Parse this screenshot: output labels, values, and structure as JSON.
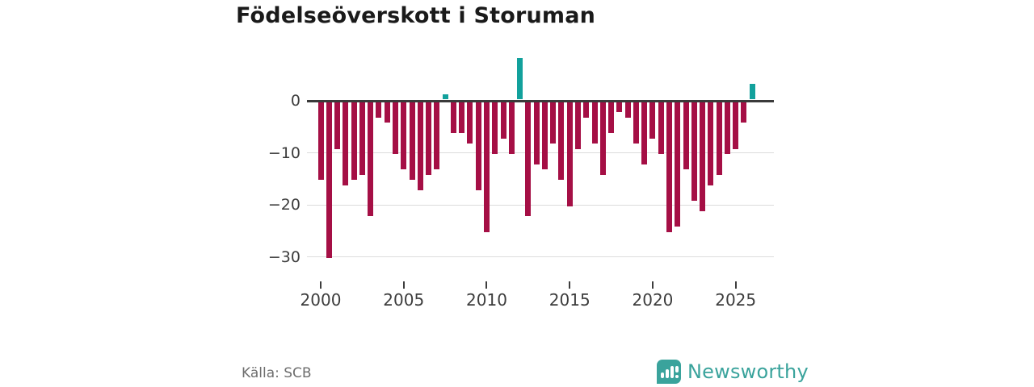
{
  "title": "Födelseöverskott i Storuman",
  "footer": {
    "source": "Källa: SCB",
    "logo_text": "Newsworthy"
  },
  "colors": {
    "negative_bar": "#a50f45",
    "positive_bar": "#12a19c",
    "zero_line": "#3a3a3a",
    "gridline": "#dcdcdc",
    "axis_text": "#3d3d3d",
    "title_text": "#1a1a1a",
    "source_text": "#6e6e6e",
    "logo_teal": "#3aa39c"
  },
  "chart_data": {
    "type": "bar",
    "title": "Födelseöverskott i Storuman",
    "x": [
      "2000H1",
      "2000H2",
      "2001H1",
      "2001H2",
      "2002H1",
      "2002H2",
      "2003H1",
      "2003H2",
      "2004H1",
      "2004H2",
      "2005H1",
      "2005H2",
      "2006H1",
      "2006H2",
      "2007H1",
      "2007H2",
      "2008H1",
      "2008H2",
      "2009H1",
      "2009H2",
      "2010H1",
      "2010H2",
      "2011H1",
      "2011H2",
      "2012H1",
      "2012H2",
      "2013H1",
      "2013H2",
      "2014H1",
      "2014H2",
      "2015H1",
      "2015H2",
      "2016H1",
      "2016H2",
      "2017H1",
      "2017H2",
      "2018H1",
      "2018H2",
      "2019H1",
      "2019H2",
      "2020H1",
      "2020H2",
      "2021H1",
      "2021H2",
      "2022H1",
      "2022H2",
      "2023H1",
      "2023H2",
      "2024H1",
      "2024H2",
      "2025H1",
      "2025H2",
      "2026H1"
    ],
    "values": [
      -15,
      -30,
      -9,
      -16,
      -15,
      -14,
      -22,
      -3,
      -4,
      -10,
      -13,
      -15,
      -17,
      -14,
      -13,
      1,
      -6,
      -6,
      -8,
      -17,
      -25,
      -10,
      -7,
      -10,
      8,
      -22,
      -12,
      -13,
      -8,
      -15,
      -20,
      -9,
      -3,
      -8,
      -14,
      -6,
      -2,
      -3,
      -8,
      -12,
      -7,
      -10,
      -25,
      -24,
      -13,
      -19,
      -21,
      -16,
      -14,
      -10,
      -9,
      -4,
      3
    ],
    "yticks": [
      0,
      -10,
      -20,
      -30
    ],
    "ytick_labels": [
      "0",
      "−10",
      "−20",
      "−30"
    ],
    "xtick_years": [
      2000,
      2005,
      2010,
      2015,
      2020,
      2025
    ],
    "ylim": [
      -32,
      10
    ],
    "grid": true,
    "legend": false,
    "bar_colors": {
      "positive": "#12a19c",
      "negative": "#a50f45"
    }
  }
}
